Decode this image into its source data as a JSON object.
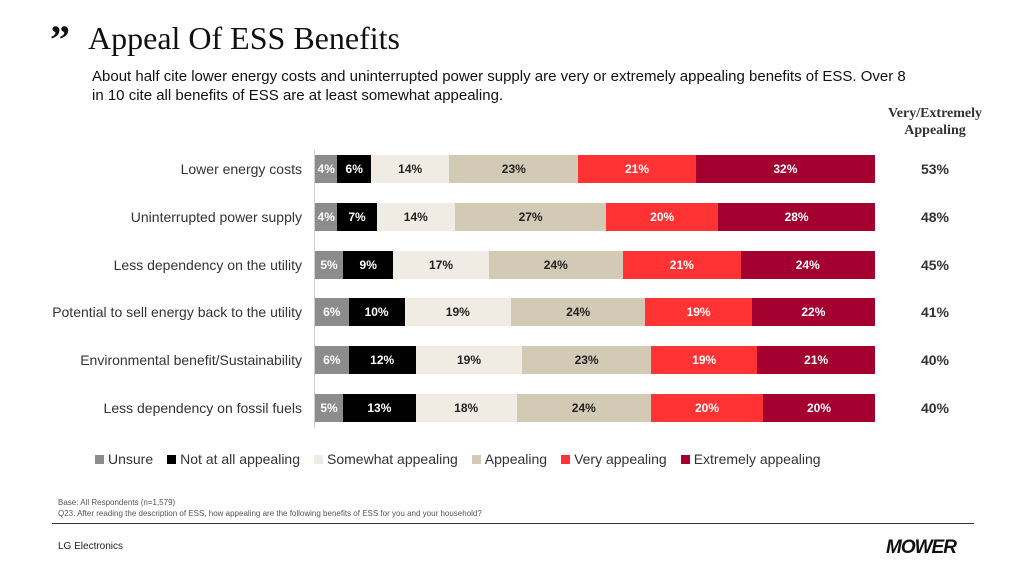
{
  "header": {
    "quote_mark": "”",
    "title": "Appeal Of ESS Benefits",
    "subtitle": "About half cite lower energy costs and uninterrupted  power supply are very or extremely appealing benefits of ESS. Over 8 in 10 cite all benefits of ESS are at least somewhat appealing.",
    "column_heading": "Very/Extremely Appealing"
  },
  "chart_data": {
    "type": "bar",
    "orientation": "horizontal",
    "stacked": true,
    "xlim": [
      0,
      100
    ],
    "grid": false,
    "legend_position": "bottom",
    "categories": [
      "Lower energy costs",
      "Uninterrupted power supply",
      "Less dependency on the utility",
      "Potential to sell energy back to the utility",
      "Environmental benefit/Sustainability",
      "Less dependency on fossil fuels"
    ],
    "series": [
      {
        "name": "Unsure",
        "color": "#8c8c8c",
        "text_color": "#ffffff",
        "values": [
          4,
          4,
          5,
          6,
          6,
          5
        ]
      },
      {
        "name": "Not at all appealing",
        "color": "#000000",
        "text_color": "#ffffff",
        "values": [
          6,
          7,
          9,
          10,
          12,
          13
        ]
      },
      {
        "name": "Somewhat appealing",
        "color": "#f0ece4",
        "text_color": "#222222",
        "values": [
          14,
          14,
          17,
          19,
          19,
          18
        ]
      },
      {
        "name": "Appealing",
        "color": "#d3cab5",
        "text_color": "#222222",
        "values": [
          23,
          27,
          24,
          24,
          23,
          24
        ]
      },
      {
        "name": "Very appealing",
        "color": "#ff3333",
        "text_color": "#ffffff",
        "values": [
          21,
          20,
          21,
          19,
          19,
          20
        ]
      },
      {
        "name": "Extremely appealing",
        "color": "#a3002f",
        "text_color": "#ffffff",
        "values": [
          32,
          28,
          24,
          22,
          21,
          20
        ]
      }
    ],
    "very_extremely_totals": [
      "53%",
      "48%",
      "45%",
      "41%",
      "40%",
      "40%"
    ]
  },
  "footer": {
    "base": "Base: All Respondents (n=1,579)",
    "question": "Q23. After reading the description of ESS, how appealing are the following benefits of ESS for you and your household?",
    "company": "LG Electronics",
    "logo": "mower"
  }
}
